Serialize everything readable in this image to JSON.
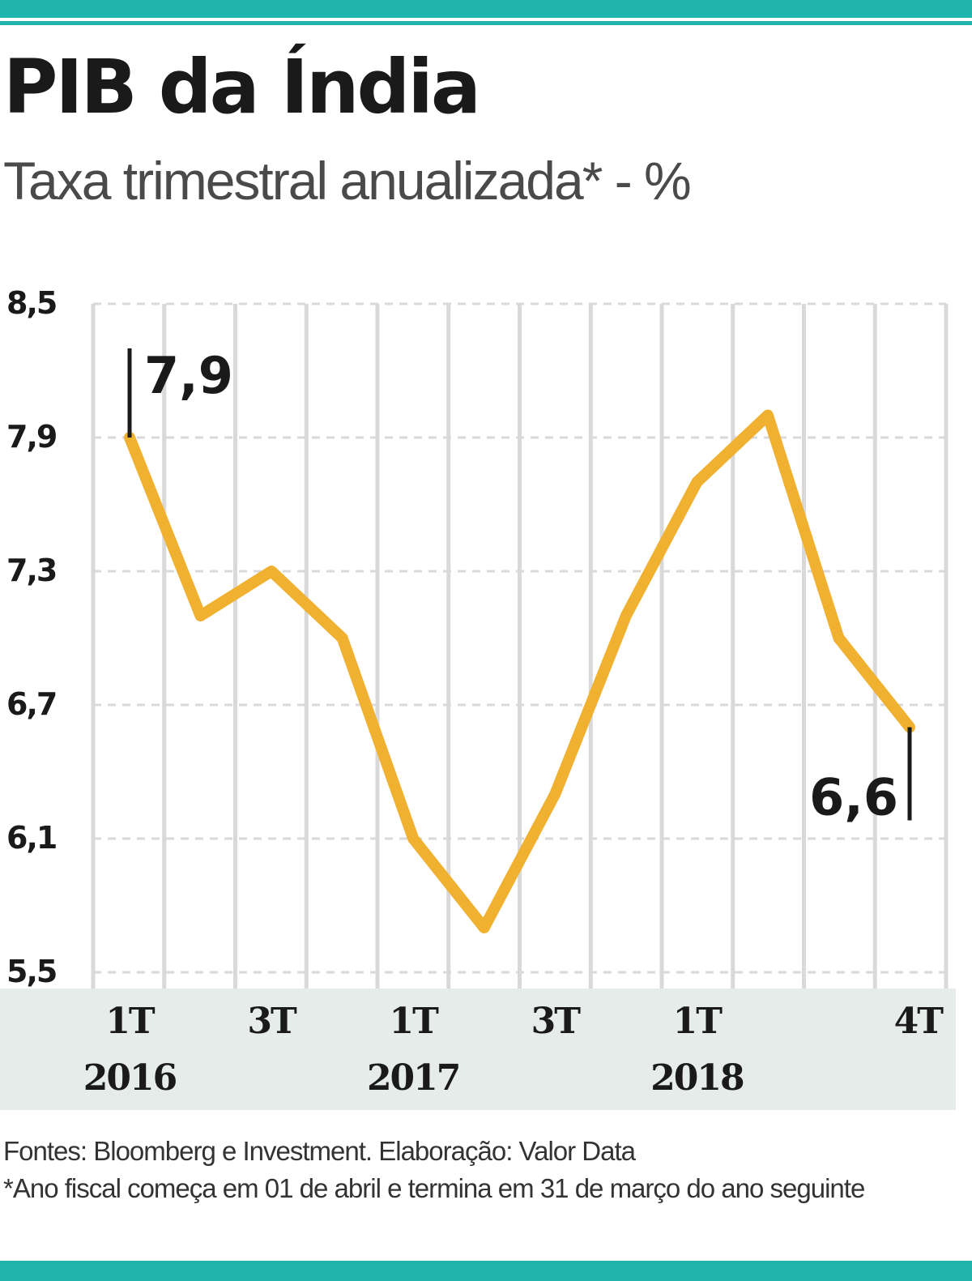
{
  "title": "PIB da Índia",
  "subtitle": "Taxa trimestral anualizada* - %",
  "colors": {
    "line": "#f0b030",
    "accent": "#1fb5ad",
    "grid": "#d9d9d9",
    "band": "#e6ecea",
    "text": "#1a1a1a"
  },
  "footer": {
    "source": "Fontes: Bloomberg e Investment. Elaboração: Valor Data",
    "note": "*Ano fiscal começa em 01 de abril e termina em 31 de março do ano seguinte"
  },
  "chart_data": {
    "type": "line",
    "title": "PIB da Índia",
    "subtitle": "Taxa trimestral anualizada* - %",
    "x": [
      "1T 2016",
      "2T 2016",
      "3T 2016",
      "4T 2016",
      "1T 2017",
      "2T 2017",
      "3T 2017",
      "4T 2017",
      "1T 2018",
      "2T 2018",
      "3T 2018",
      "4T 2018"
    ],
    "series": [
      {
        "values": [
          7.9,
          7.1,
          7.3,
          7.0,
          6.1,
          5.7,
          6.3,
          7.1,
          7.7,
          8.0,
          7.0,
          6.6
        ]
      }
    ],
    "ylim": [
      5.5,
      8.5
    ],
    "yticks": [
      5.5,
      6.1,
      6.7,
      7.3,
      7.9,
      8.5
    ],
    "ytick_labels": [
      "5,5",
      "6,1",
      "6,7",
      "7,3",
      "7,9",
      "8,5"
    ],
    "xtick_labels": [
      {
        "quarter": "1T",
        "year": "2016",
        "index": 0
      },
      {
        "quarter": "3T",
        "year": "",
        "index": 2
      },
      {
        "quarter": "1T",
        "year": "2017",
        "index": 4
      },
      {
        "quarter": "3T",
        "year": "",
        "index": 6
      },
      {
        "quarter": "1T",
        "year": "2018",
        "index": 8
      },
      {
        "quarter": "4T",
        "year": "",
        "index": 11
      }
    ],
    "annotations": [
      {
        "index": 0,
        "text": "7,9"
      },
      {
        "index": 11,
        "text": "6,6"
      }
    ],
    "grid": true
  }
}
